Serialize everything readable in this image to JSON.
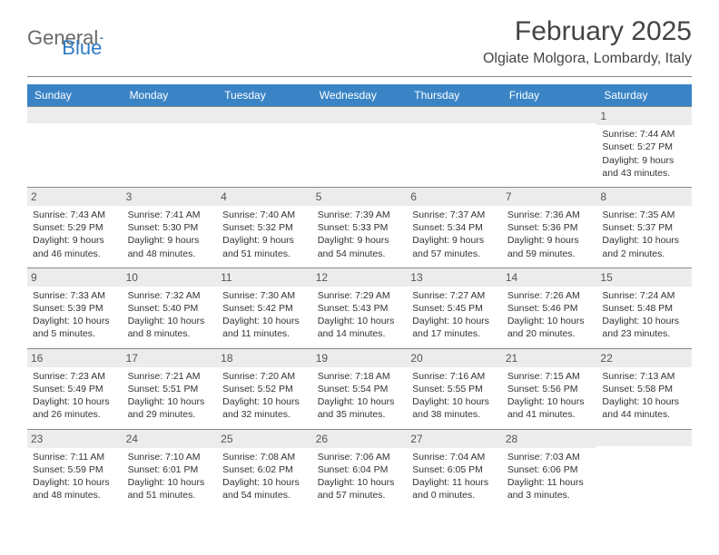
{
  "logo": {
    "general": "General",
    "blue": "Blue"
  },
  "title": "February 2025",
  "location": "Olgiate Molgora, Lombardy, Italy",
  "colors": {
    "header_bg": "#3a84c6",
    "header_text": "#ffffff",
    "daynum_bg": "#ececec",
    "divider": "#888888",
    "text": "#333333",
    "logo_gray": "#6a6a6a",
    "logo_blue": "#2f7cc4"
  },
  "weekdays": [
    "Sunday",
    "Monday",
    "Tuesday",
    "Wednesday",
    "Thursday",
    "Friday",
    "Saturday"
  ],
  "weeks": [
    [
      {
        "day": "",
        "sunrise": "",
        "sunset": "",
        "daylight1": "",
        "daylight2": ""
      },
      {
        "day": "",
        "sunrise": "",
        "sunset": "",
        "daylight1": "",
        "daylight2": ""
      },
      {
        "day": "",
        "sunrise": "",
        "sunset": "",
        "daylight1": "",
        "daylight2": ""
      },
      {
        "day": "",
        "sunrise": "",
        "sunset": "",
        "daylight1": "",
        "daylight2": ""
      },
      {
        "day": "",
        "sunrise": "",
        "sunset": "",
        "daylight1": "",
        "daylight2": ""
      },
      {
        "day": "",
        "sunrise": "",
        "sunset": "",
        "daylight1": "",
        "daylight2": ""
      },
      {
        "day": "1",
        "sunrise": "Sunrise: 7:44 AM",
        "sunset": "Sunset: 5:27 PM",
        "daylight1": "Daylight: 9 hours",
        "daylight2": "and 43 minutes."
      }
    ],
    [
      {
        "day": "2",
        "sunrise": "Sunrise: 7:43 AM",
        "sunset": "Sunset: 5:29 PM",
        "daylight1": "Daylight: 9 hours",
        "daylight2": "and 46 minutes."
      },
      {
        "day": "3",
        "sunrise": "Sunrise: 7:41 AM",
        "sunset": "Sunset: 5:30 PM",
        "daylight1": "Daylight: 9 hours",
        "daylight2": "and 48 minutes."
      },
      {
        "day": "4",
        "sunrise": "Sunrise: 7:40 AM",
        "sunset": "Sunset: 5:32 PM",
        "daylight1": "Daylight: 9 hours",
        "daylight2": "and 51 minutes."
      },
      {
        "day": "5",
        "sunrise": "Sunrise: 7:39 AM",
        "sunset": "Sunset: 5:33 PM",
        "daylight1": "Daylight: 9 hours",
        "daylight2": "and 54 minutes."
      },
      {
        "day": "6",
        "sunrise": "Sunrise: 7:37 AM",
        "sunset": "Sunset: 5:34 PM",
        "daylight1": "Daylight: 9 hours",
        "daylight2": "and 57 minutes."
      },
      {
        "day": "7",
        "sunrise": "Sunrise: 7:36 AM",
        "sunset": "Sunset: 5:36 PM",
        "daylight1": "Daylight: 9 hours",
        "daylight2": "and 59 minutes."
      },
      {
        "day": "8",
        "sunrise": "Sunrise: 7:35 AM",
        "sunset": "Sunset: 5:37 PM",
        "daylight1": "Daylight: 10 hours",
        "daylight2": "and 2 minutes."
      }
    ],
    [
      {
        "day": "9",
        "sunrise": "Sunrise: 7:33 AM",
        "sunset": "Sunset: 5:39 PM",
        "daylight1": "Daylight: 10 hours",
        "daylight2": "and 5 minutes."
      },
      {
        "day": "10",
        "sunrise": "Sunrise: 7:32 AM",
        "sunset": "Sunset: 5:40 PM",
        "daylight1": "Daylight: 10 hours",
        "daylight2": "and 8 minutes."
      },
      {
        "day": "11",
        "sunrise": "Sunrise: 7:30 AM",
        "sunset": "Sunset: 5:42 PM",
        "daylight1": "Daylight: 10 hours",
        "daylight2": "and 11 minutes."
      },
      {
        "day": "12",
        "sunrise": "Sunrise: 7:29 AM",
        "sunset": "Sunset: 5:43 PM",
        "daylight1": "Daylight: 10 hours",
        "daylight2": "and 14 minutes."
      },
      {
        "day": "13",
        "sunrise": "Sunrise: 7:27 AM",
        "sunset": "Sunset: 5:45 PM",
        "daylight1": "Daylight: 10 hours",
        "daylight2": "and 17 minutes."
      },
      {
        "day": "14",
        "sunrise": "Sunrise: 7:26 AM",
        "sunset": "Sunset: 5:46 PM",
        "daylight1": "Daylight: 10 hours",
        "daylight2": "and 20 minutes."
      },
      {
        "day": "15",
        "sunrise": "Sunrise: 7:24 AM",
        "sunset": "Sunset: 5:48 PM",
        "daylight1": "Daylight: 10 hours",
        "daylight2": "and 23 minutes."
      }
    ],
    [
      {
        "day": "16",
        "sunrise": "Sunrise: 7:23 AM",
        "sunset": "Sunset: 5:49 PM",
        "daylight1": "Daylight: 10 hours",
        "daylight2": "and 26 minutes."
      },
      {
        "day": "17",
        "sunrise": "Sunrise: 7:21 AM",
        "sunset": "Sunset: 5:51 PM",
        "daylight1": "Daylight: 10 hours",
        "daylight2": "and 29 minutes."
      },
      {
        "day": "18",
        "sunrise": "Sunrise: 7:20 AM",
        "sunset": "Sunset: 5:52 PM",
        "daylight1": "Daylight: 10 hours",
        "daylight2": "and 32 minutes."
      },
      {
        "day": "19",
        "sunrise": "Sunrise: 7:18 AM",
        "sunset": "Sunset: 5:54 PM",
        "daylight1": "Daylight: 10 hours",
        "daylight2": "and 35 minutes."
      },
      {
        "day": "20",
        "sunrise": "Sunrise: 7:16 AM",
        "sunset": "Sunset: 5:55 PM",
        "daylight1": "Daylight: 10 hours",
        "daylight2": "and 38 minutes."
      },
      {
        "day": "21",
        "sunrise": "Sunrise: 7:15 AM",
        "sunset": "Sunset: 5:56 PM",
        "daylight1": "Daylight: 10 hours",
        "daylight2": "and 41 minutes."
      },
      {
        "day": "22",
        "sunrise": "Sunrise: 7:13 AM",
        "sunset": "Sunset: 5:58 PM",
        "daylight1": "Daylight: 10 hours",
        "daylight2": "and 44 minutes."
      }
    ],
    [
      {
        "day": "23",
        "sunrise": "Sunrise: 7:11 AM",
        "sunset": "Sunset: 5:59 PM",
        "daylight1": "Daylight: 10 hours",
        "daylight2": "and 48 minutes."
      },
      {
        "day": "24",
        "sunrise": "Sunrise: 7:10 AM",
        "sunset": "Sunset: 6:01 PM",
        "daylight1": "Daylight: 10 hours",
        "daylight2": "and 51 minutes."
      },
      {
        "day": "25",
        "sunrise": "Sunrise: 7:08 AM",
        "sunset": "Sunset: 6:02 PM",
        "daylight1": "Daylight: 10 hours",
        "daylight2": "and 54 minutes."
      },
      {
        "day": "26",
        "sunrise": "Sunrise: 7:06 AM",
        "sunset": "Sunset: 6:04 PM",
        "daylight1": "Daylight: 10 hours",
        "daylight2": "and 57 minutes."
      },
      {
        "day": "27",
        "sunrise": "Sunrise: 7:04 AM",
        "sunset": "Sunset: 6:05 PM",
        "daylight1": "Daylight: 11 hours",
        "daylight2": "and 0 minutes."
      },
      {
        "day": "28",
        "sunrise": "Sunrise: 7:03 AM",
        "sunset": "Sunset: 6:06 PM",
        "daylight1": "Daylight: 11 hours",
        "daylight2": "and 3 minutes."
      },
      {
        "day": "",
        "sunrise": "",
        "sunset": "",
        "daylight1": "",
        "daylight2": ""
      }
    ]
  ]
}
